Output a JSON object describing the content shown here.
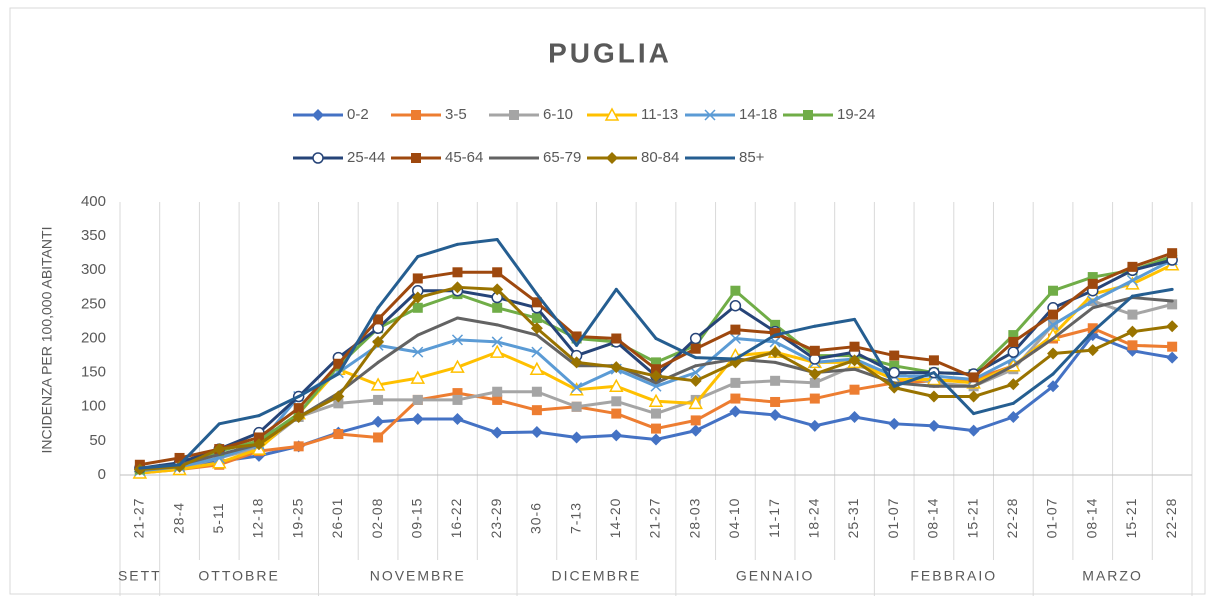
{
  "chart_data": {
    "type": "line",
    "title": "PUGLIA",
    "y_label": "INCIDENZA PER 100,000 ABITANTI",
    "categories": [
      "21-27",
      "28-4",
      "5-11",
      "12-18",
      "19-25",
      "26-01",
      "02-08",
      "09-15",
      "16-22",
      "23-29",
      "30-6",
      "7-13",
      "14-20",
      "21-27",
      "28-03",
      "04-10",
      "11-17",
      "18-24",
      "25-31",
      "01-07",
      "08-14",
      "15-21",
      "22-28",
      "01-07",
      "08-14",
      "15-21",
      "22-28"
    ],
    "x_groups": [
      {
        "label": "SETT",
        "span": 1
      },
      {
        "label": "OTTOBRE",
        "span": 4
      },
      {
        "label": "NOVEMBRE",
        "span": 5
      },
      {
        "label": "DICEMBRE",
        "span": 4
      },
      {
        "label": "GENNAIO",
        "span": 5
      },
      {
        "label": "FEBBRAIO",
        "span": 4
      },
      {
        "label": "MARZO",
        "span": 4
      }
    ],
    "ylim": [
      0,
      400
    ],
    "yticks": [
      0,
      50,
      100,
      150,
      200,
      250,
      300,
      350,
      400
    ],
    "grid": true,
    "series": [
      {
        "name": "0-2",
        "color": "#4472c4",
        "marker": "diamond",
        "values": [
          5,
          10,
          20,
          28,
          42,
          62,
          78,
          82,
          82,
          62,
          63,
          55,
          58,
          52,
          65,
          93,
          88,
          72,
          85,
          75,
          72,
          65,
          85,
          130,
          205,
          182,
          172
        ]
      },
      {
        "name": "3-5",
        "color": "#ed7d31",
        "marker": "square",
        "values": [
          3,
          8,
          15,
          35,
          42,
          60,
          55,
          110,
          120,
          110,
          95,
          100,
          90,
          68,
          80,
          112,
          107,
          112,
          125,
          135,
          138,
          140,
          160,
          200,
          215,
          190,
          188
        ]
      },
      {
        "name": "6-10",
        "color": "#a5a5a5",
        "marker": "square",
        "values": [
          4,
          10,
          25,
          40,
          85,
          105,
          110,
          110,
          110,
          122,
          122,
          100,
          108,
          90,
          110,
          135,
          138,
          135,
          160,
          150,
          135,
          130,
          155,
          220,
          255,
          235,
          250
        ]
      },
      {
        "name": "11-13",
        "color": "#ffc000",
        "marker": "triangle",
        "values": [
          3,
          8,
          18,
          38,
          90,
          155,
          132,
          142,
          158,
          180,
          155,
          125,
          130,
          108,
          105,
          175,
          180,
          165,
          165,
          140,
          140,
          135,
          160,
          205,
          265,
          280,
          308
        ]
      },
      {
        "name": "14-18",
        "color": "#5b9bd5",
        "marker": "x",
        "values": [
          6,
          12,
          25,
          45,
          115,
          150,
          190,
          180,
          198,
          195,
          180,
          128,
          155,
          130,
          150,
          200,
          195,
          165,
          170,
          145,
          145,
          140,
          170,
          220,
          255,
          285,
          315
        ]
      },
      {
        "name": "19-24",
        "color": "#70ad47",
        "marker": "square",
        "values": [
          8,
          15,
          35,
          50,
          90,
          160,
          215,
          245,
          265,
          245,
          230,
          200,
          195,
          165,
          190,
          270,
          220,
          175,
          175,
          160,
          150,
          148,
          205,
          270,
          290,
          300,
          320
        ]
      },
      {
        "name": "25-44",
        "color": "#264478",
        "marker": "circle",
        "values": [
          10,
          18,
          38,
          62,
          115,
          172,
          215,
          270,
          270,
          260,
          245,
          175,
          195,
          145,
          200,
          248,
          210,
          170,
          180,
          150,
          150,
          148,
          180,
          245,
          270,
          300,
          315
        ]
      },
      {
        "name": "45-64",
        "color": "#9e480e",
        "marker": "square",
        "values": [
          15,
          25,
          38,
          55,
          98,
          163,
          228,
          288,
          297,
          297,
          253,
          203,
          200,
          155,
          185,
          213,
          208,
          182,
          188,
          175,
          168,
          143,
          195,
          235,
          280,
          305,
          325
        ]
      },
      {
        "name": "65-79",
        "color": "#636363",
        "marker": "none",
        "values": [
          10,
          15,
          30,
          45,
          85,
          120,
          165,
          205,
          230,
          220,
          205,
          160,
          160,
          135,
          160,
          170,
          165,
          150,
          155,
          135,
          130,
          130,
          160,
          200,
          245,
          260,
          255
        ]
      },
      {
        "name": "80-84",
        "color": "#997300",
        "marker": "diamond",
        "values": [
          8,
          12,
          38,
          45,
          85,
          115,
          195,
          260,
          275,
          272,
          215,
          165,
          158,
          145,
          138,
          165,
          180,
          148,
          168,
          128,
          115,
          115,
          133,
          178,
          183,
          210,
          218
        ]
      },
      {
        "name": "85+",
        "color": "#255e91",
        "marker": "none",
        "values": [
          10,
          15,
          75,
          87,
          115,
          148,
          245,
          320,
          338,
          345,
          265,
          190,
          272,
          200,
          172,
          170,
          205,
          218,
          228,
          130,
          150,
          90,
          105,
          148,
          210,
          262,
          272
        ]
      }
    ]
  }
}
